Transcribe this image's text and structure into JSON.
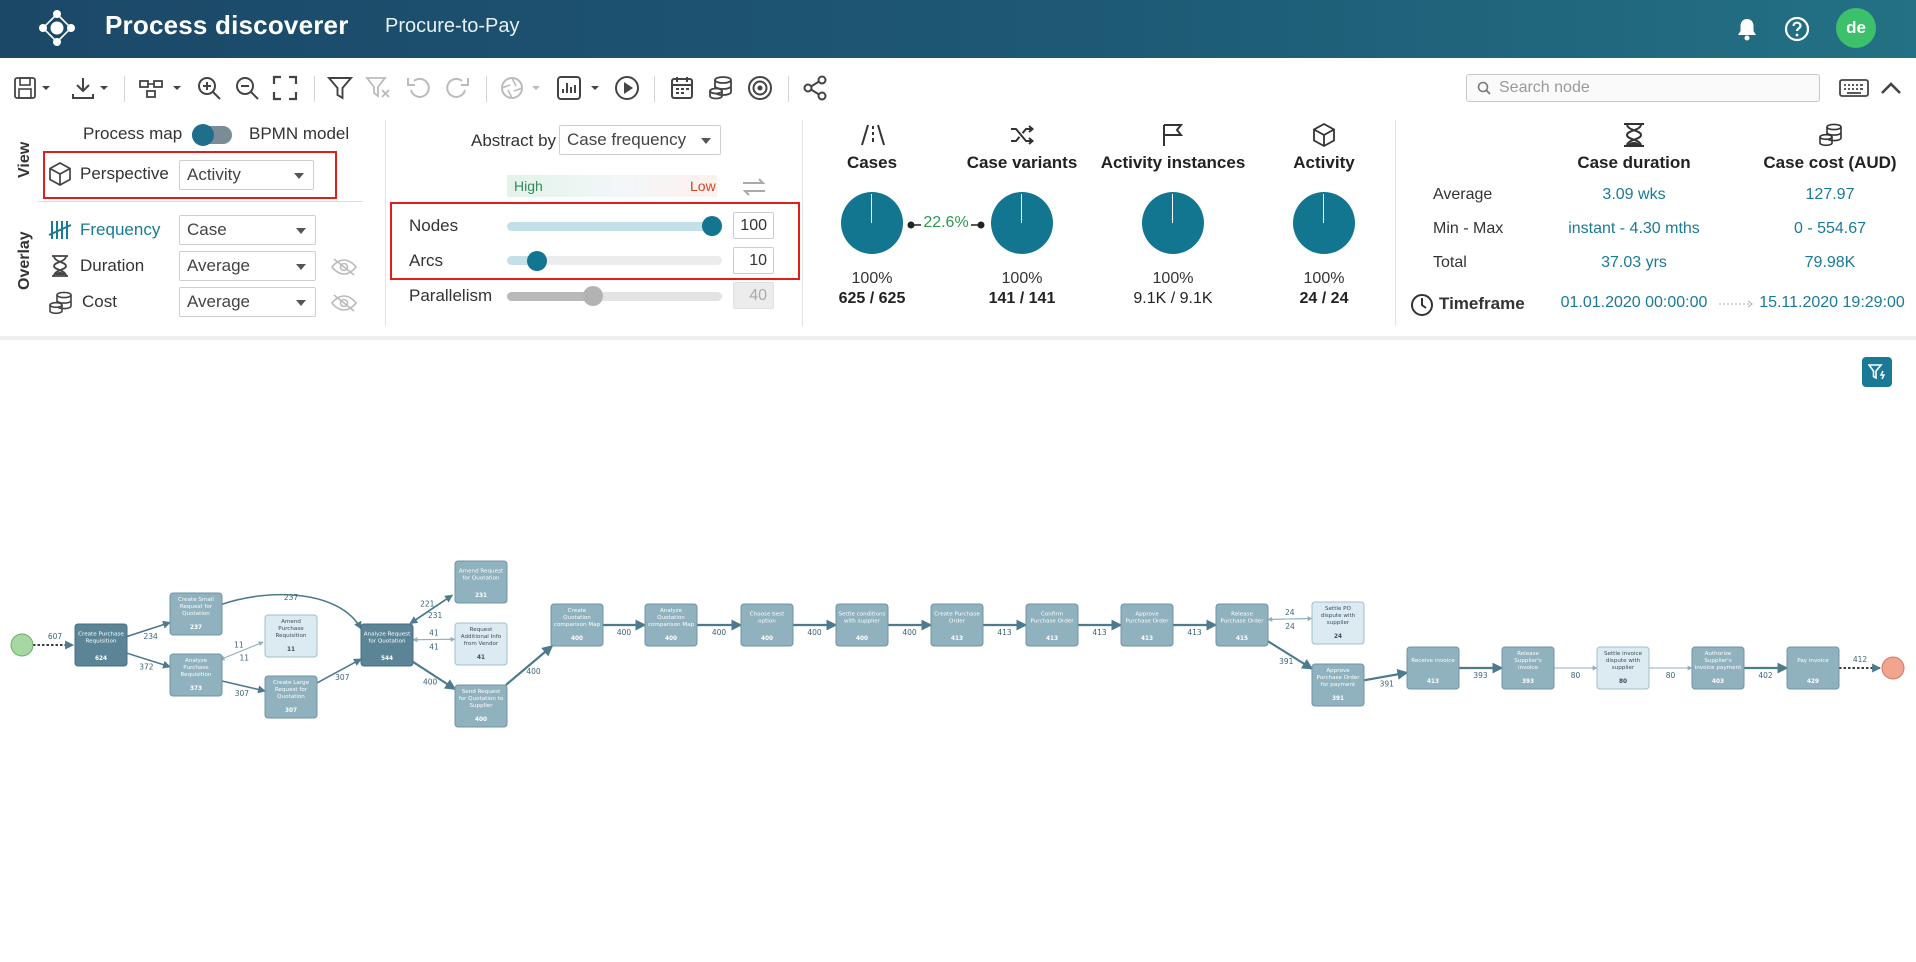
{
  "header": {
    "app_title": "Process discoverer",
    "project_name": "Procure-to-Pay",
    "avatar_initials": "de",
    "icons": [
      "bell-icon",
      "help-icon"
    ]
  },
  "toolbar": {
    "icons": [
      "save-icon",
      "download-icon",
      "layout-icon",
      "zoom-in-icon",
      "zoom-out-icon",
      "fit-screen-icon",
      "filter-icon",
      "clear-filter-icon",
      "undo-icon",
      "redo-icon",
      "aperture-icon",
      "chart-icon",
      "play-icon",
      "calendar-icon",
      "database-icon",
      "target-icon",
      "share-icon",
      "keyboard-icon",
      "collapse-icon"
    ],
    "search_placeholder": "Search node"
  },
  "view": {
    "section_label": "View",
    "toggle_left": "Process map",
    "toggle_right": "BPMN model",
    "perspective_label": "Perspective",
    "perspective_value": "Activity"
  },
  "overlay": {
    "section_label": "Overlay",
    "rows": [
      {
        "label": "Frequency",
        "value": "Case"
      },
      {
        "label": "Duration",
        "value": "Average"
      },
      {
        "label": "Cost",
        "value": "Average"
      }
    ]
  },
  "abstraction": {
    "abstract_by_label": "Abstract by",
    "abstract_by_value": "Case frequency",
    "high_label": "High",
    "low_label": "Low",
    "sliders": [
      {
        "label": "Nodes",
        "value": "100",
        "level": 1.0
      },
      {
        "label": "Arcs",
        "value": "10",
        "level": 0.1
      },
      {
        "label": "Parallelism",
        "value": "40",
        "level": 0.4
      }
    ]
  },
  "stats": {
    "variant_ratio": "22.6%",
    "items": [
      {
        "title": "Cases",
        "pct": "100%",
        "count": "625 / 625",
        "icon": "road-icon"
      },
      {
        "title": "Case variants",
        "pct": "100%",
        "count": "141 / 141",
        "icon": "shuffle-icon"
      },
      {
        "title": "Activity instances",
        "pct": "100%",
        "count": "9.1K / 9.1K",
        "icon": "flag-icon"
      },
      {
        "title": "Activity",
        "pct": "100%",
        "count": "24 / 24",
        "icon": "cube-icon"
      }
    ]
  },
  "metrics": {
    "col1_title": "Case duration",
    "col2_title": "Case cost (AUD)",
    "rows": [
      {
        "label": "Average",
        "duration": "3.09 wks",
        "cost": "127.97"
      },
      {
        "label": "Min - Max",
        "duration": "instant - 4.30 mths",
        "cost": "0 - 554.67"
      },
      {
        "label": "Total",
        "duration": "37.03 yrs",
        "cost": "79.98K"
      }
    ],
    "timeframe_label": "Timeframe",
    "timeframe_start": "01.01.2020 00:00:00",
    "timeframe_end": "15.11.2020 19:29:00"
  },
  "process_map": {
    "start_count": "607",
    "nodes": [
      {
        "id": "n1",
        "label": [
          "Create Purchase",
          "Requisition"
        ],
        "count": "624"
      },
      {
        "id": "n2",
        "label": [
          "Create Small",
          "Request for",
          "Quotation"
        ],
        "count": "237"
      },
      {
        "id": "n3",
        "label": [
          "Analyze",
          "Purchase",
          "Requisition"
        ],
        "count": "373"
      },
      {
        "id": "n4",
        "label": [
          "Amend",
          "Purchase",
          "Requisition"
        ],
        "count": "11"
      },
      {
        "id": "n5",
        "label": [
          "Create Large",
          "Request for",
          "Quotation"
        ],
        "count": "307"
      },
      {
        "id": "n6",
        "label": [
          "Analyze Request",
          "for Quotation"
        ],
        "count": "544"
      },
      {
        "id": "n7",
        "label": [
          "Amend Request",
          "for Quotation"
        ],
        "count": "231"
      },
      {
        "id": "n8",
        "label": [
          "Request",
          "Additional Info",
          "from Vendor"
        ],
        "count": "41"
      },
      {
        "id": "n9",
        "label": [
          "Send Request",
          "for Quotation to",
          "Supplier"
        ],
        "count": "400"
      },
      {
        "id": "n10",
        "label": [
          "Create",
          "Quotation",
          "comparison Map"
        ],
        "count": "400"
      },
      {
        "id": "n11",
        "label": [
          "Analyze",
          "Quotation",
          "comparison Map"
        ],
        "count": "400"
      },
      {
        "id": "n12",
        "label": [
          "Choose best",
          "option"
        ],
        "count": "400"
      },
      {
        "id": "n13",
        "label": [
          "Settle conditions",
          "with supplier"
        ],
        "count": "400"
      },
      {
        "id": "n14",
        "label": [
          "Create Purchase",
          "Order"
        ],
        "count": "413"
      },
      {
        "id": "n15",
        "label": [
          "Confirm",
          "Purchase Order"
        ],
        "count": "413"
      },
      {
        "id": "n16",
        "label": [
          "Approve",
          "Purchase Order"
        ],
        "count": "413"
      },
      {
        "id": "n17",
        "label": [
          "Release",
          "Purchase Order"
        ],
        "count": "415"
      },
      {
        "id": "n18",
        "label": [
          "Settle PO",
          "dispute with",
          "supplier"
        ],
        "count": "24"
      },
      {
        "id": "n19",
        "label": [
          "Approve",
          "Purchase Order",
          "for payment"
        ],
        "count": "391"
      },
      {
        "id": "n20",
        "label": [
          "Receive invoice"
        ],
        "count": "413"
      },
      {
        "id": "n21",
        "label": [
          "Release",
          "Supplier's",
          "invoice"
        ],
        "count": "393"
      },
      {
        "id": "n22",
        "label": [
          "Settle invoice",
          "dispute with",
          "supplier"
        ],
        "count": "80"
      },
      {
        "id": "n23",
        "label": [
          "Authorize",
          "Supplier's",
          "invoice payment"
        ],
        "count": "403"
      },
      {
        "id": "n24",
        "label": [
          "Pay invoice"
        ],
        "count": "429"
      }
    ],
    "edges": [
      {
        "from": "n1",
        "to": "n2",
        "count": "234"
      },
      {
        "from": "n1",
        "to": "n3",
        "count": "372"
      },
      {
        "from": "n3",
        "to": "n4",
        "count": "11"
      },
      {
        "from": "n4",
        "to": "n3",
        "count": "11"
      },
      {
        "from": "n3",
        "to": "n5",
        "count": "307"
      },
      {
        "from": "n2",
        "to": "n6",
        "count": "237"
      },
      {
        "from": "n5",
        "to": "n6",
        "count": "307"
      },
      {
        "from": "n6",
        "to": "n7",
        "count": "231"
      },
      {
        "from": "n7",
        "to": "n6",
        "count": "221"
      },
      {
        "from": "n6",
        "to": "n8",
        "count": "41"
      },
      {
        "from": "n8",
        "to": "n6",
        "count": "41"
      },
      {
        "from": "n6",
        "to": "n9",
        "count": "400"
      },
      {
        "from": "n9",
        "to": "n10",
        "count": "400"
      },
      {
        "from": "n10",
        "to": "n11",
        "count": "400"
      },
      {
        "from": "n11",
        "to": "n12",
        "count": "400"
      },
      {
        "from": "n12",
        "to": "n13",
        "count": "400"
      },
      {
        "from": "n13",
        "to": "n14",
        "count": "400"
      },
      {
        "from": "n14",
        "to": "n15",
        "count": "413"
      },
      {
        "from": "n15",
        "to": "n16",
        "count": "413"
      },
      {
        "from": "n16",
        "to": "n17",
        "count": "413"
      },
      {
        "from": "n17",
        "to": "n18",
        "count": "24"
      },
      {
        "from": "n18",
        "to": "n17",
        "count": "24"
      },
      {
        "from": "n17",
        "to": "n19",
        "count": "391"
      },
      {
        "from": "n19",
        "to": "n20",
        "count": "391"
      },
      {
        "from": "n20",
        "to": "n21",
        "count": "393"
      },
      {
        "from": "n21",
        "to": "n22",
        "count": "80"
      },
      {
        "from": "n22",
        "to": "n23",
        "count": "80"
      },
      {
        "from": "n23",
        "to": "n24",
        "count": "402"
      }
    ],
    "end_count": "412"
  },
  "colors": {
    "header_start": "#1c4868",
    "header_end": "#237184",
    "accent": "#1a7a96",
    "pie": "#137691",
    "highlight_red": "#e21d1d",
    "avatar": "#3cc06b",
    "node_dark": "#5b8597",
    "node_mid": "#90b1be",
    "node_light": "#dcebf1",
    "start_node": "#a7d8a4",
    "end_node": "#f2a48f"
  }
}
